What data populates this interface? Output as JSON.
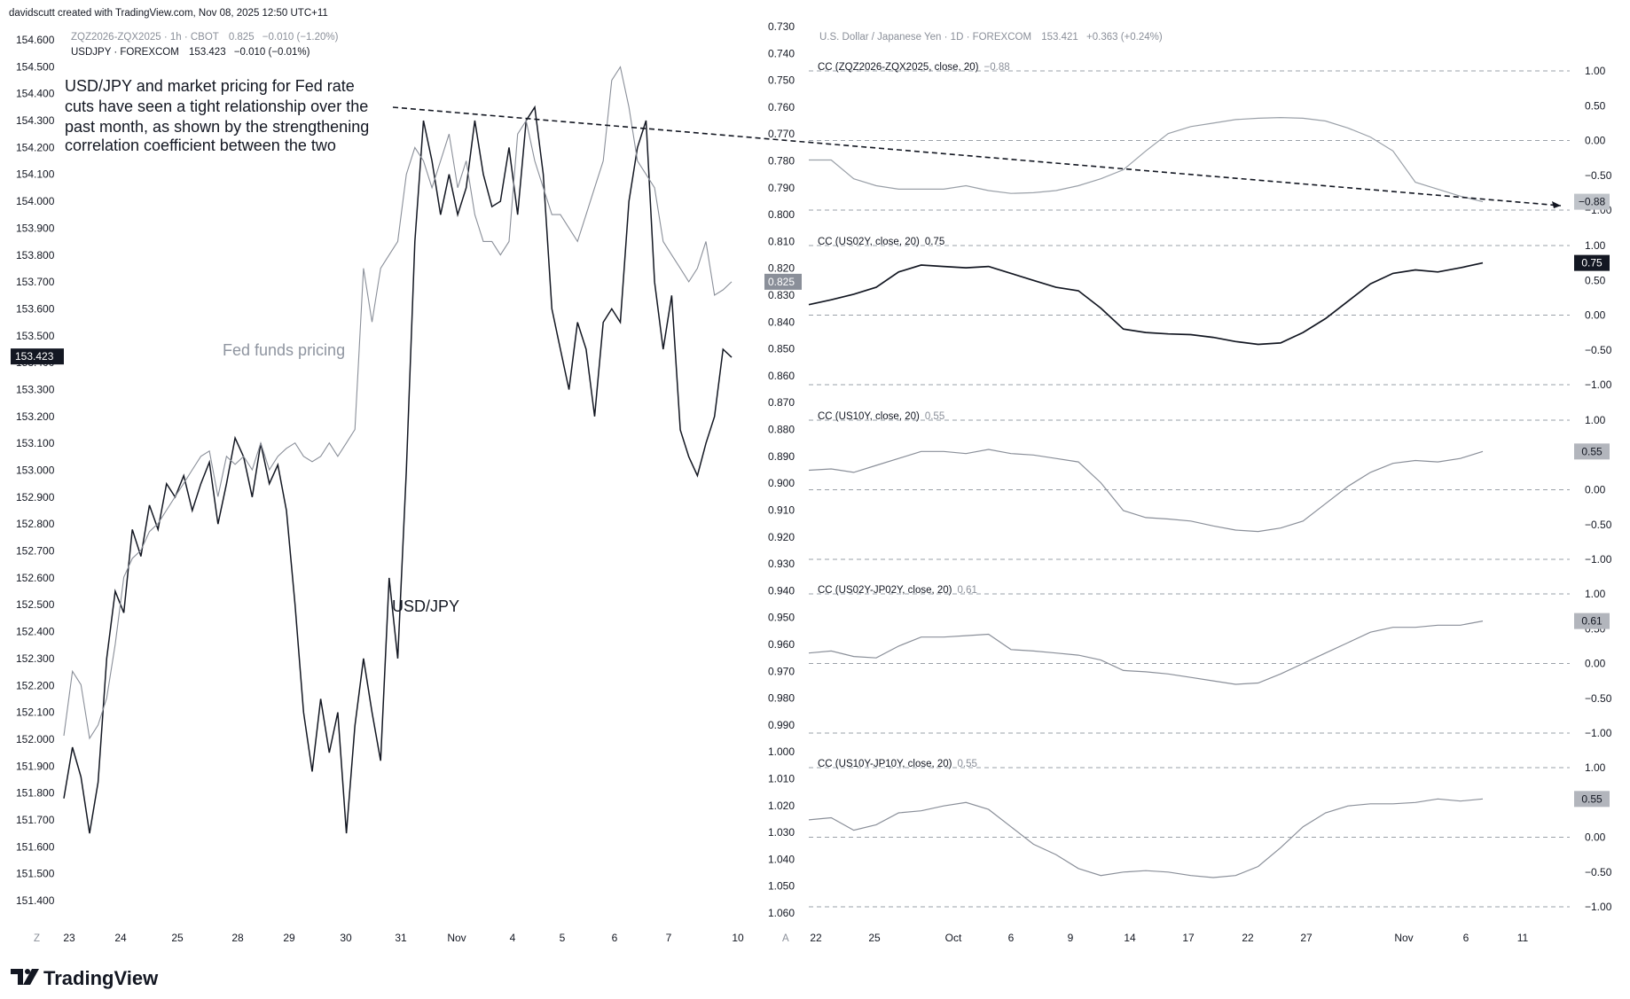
{
  "header": {
    "created_by": "davidscutt created with TradingView.com, Nov 08, 2025 12:50 UTC+11"
  },
  "branding": {
    "logo_text": "TradingView",
    "logo_icon": "tradingview-logo-icon"
  },
  "chart_data": [
    {
      "type": "line",
      "legend_entries": [
        {
          "symbol": "ZQZ2026-ZQX2025 · 1h · CBOT",
          "value": "0.825",
          "change": "−0.010 (−1.20%)",
          "color": "#8a8f99"
        },
        {
          "symbol": "USDJPY · FOREXCOM",
          "value": "153.423",
          "change": "−0.010 (−0.01%)",
          "color": "#131722"
        }
      ],
      "annotation": {
        "lines": [
          "USD/JPY and market pricing for Fed rate",
          "cuts have seen a tight relationship over the",
          "past month, as shown by the strengthening",
          "correlation coefficient between the two"
        ],
        "fed_label": "Fed funds pricing",
        "usdjpy_label": "USD/JPY"
      },
      "x_ticks": [
        "23",
        "24",
        "25",
        "28",
        "29",
        "30",
        "31",
        "Nov",
        "4",
        "5",
        "6",
        "7",
        "10"
      ],
      "left_axis": {
        "ticks": [
          "154.600",
          "154.500",
          "154.400",
          "154.300",
          "154.200",
          "154.100",
          "154.000",
          "153.900",
          "153.800",
          "153.700",
          "153.600",
          "153.500",
          "153.400",
          "153.300",
          "153.200",
          "153.100",
          "153.000",
          "152.900",
          "152.800",
          "152.700",
          "152.600",
          "152.500",
          "152.400",
          "152.300",
          "152.200",
          "152.100",
          "152.000",
          "151.900",
          "151.800",
          "151.700",
          "151.600",
          "151.500",
          "151.400"
        ],
        "range": [
          151.4,
          154.6
        ],
        "last_value_label": "153.423",
        "corner_label": "Z"
      },
      "right_axis": {
        "inverted": true,
        "ticks": [
          "0.730",
          "0.740",
          "0.750",
          "0.760",
          "0.770",
          "0.780",
          "0.790",
          "0.800",
          "0.810",
          "0.820",
          "0.830",
          "0.840",
          "0.850",
          "0.860",
          "0.870",
          "0.880",
          "0.890",
          "0.900",
          "0.910",
          "0.920",
          "0.930",
          "0.940",
          "0.950",
          "0.960",
          "0.970",
          "0.980",
          "0.990",
          "1.000",
          "1.010",
          "1.020",
          "1.030",
          "1.040",
          "1.050",
          "1.060"
        ],
        "range": [
          0.73,
          1.06
        ],
        "last_value_label": "0.825",
        "corner_label": "A"
      },
      "series": [
        {
          "name": "USDJPY · FOREXCOM",
          "axis": "left",
          "color": "#131722",
          "values": [
            151.78,
            151.97,
            151.86,
            151.65,
            151.84,
            152.3,
            152.55,
            152.47,
            152.78,
            152.68,
            152.87,
            152.78,
            152.95,
            152.9,
            152.98,
            152.85,
            152.95,
            153.03,
            152.8,
            152.95,
            153.12,
            153.05,
            152.9,
            153.1,
            152.95,
            153.02,
            152.85,
            152.5,
            152.1,
            151.88,
            152.15,
            151.95,
            152.1,
            151.65,
            152.05,
            152.3,
            152.1,
            151.92,
            152.6,
            152.3,
            153.0,
            153.85,
            154.3,
            154.15,
            153.95,
            154.1,
            153.95,
            154.05,
            154.3,
            154.1,
            153.98,
            154.0,
            154.2,
            153.95,
            154.3,
            154.35,
            154.1,
            153.6,
            153.45,
            153.3,
            153.55,
            153.45,
            153.2,
            153.55,
            153.6,
            153.55,
            154.0,
            154.2,
            154.3,
            153.7,
            153.45,
            153.65,
            153.15,
            153.05,
            152.98,
            153.1,
            153.2,
            153.45,
            153.42
          ]
        },
        {
          "name": "ZQZ2026-ZQX2025 · 1h · CBOT",
          "axis": "right",
          "color": "#8a8f99",
          "values": [
            0.994,
            0.97,
            0.975,
            0.995,
            0.99,
            0.98,
            0.96,
            0.935,
            0.928,
            0.925,
            0.918,
            0.915,
            0.91,
            0.905,
            0.9,
            0.895,
            0.89,
            0.888,
            0.905,
            0.89,
            0.893,
            0.89,
            0.895,
            0.885,
            0.895,
            0.89,
            0.887,
            0.885,
            0.89,
            0.892,
            0.89,
            0.885,
            0.89,
            0.885,
            0.88,
            0.82,
            0.84,
            0.82,
            0.815,
            0.81,
            0.785,
            0.775,
            0.78,
            0.79,
            0.78,
            0.77,
            0.79,
            0.78,
            0.8,
            0.81,
            0.81,
            0.815,
            0.81,
            0.77,
            0.765,
            0.78,
            0.79,
            0.8,
            0.8,
            0.805,
            0.81,
            0.8,
            0.79,
            0.78,
            0.75,
            0.745,
            0.76,
            0.78,
            0.785,
            0.79,
            0.81,
            0.815,
            0.82,
            0.825,
            0.82,
            0.81,
            0.83,
            0.828,
            0.825
          ]
        }
      ]
    },
    {
      "type": "line",
      "title": "U.S. Dollar / Japanese Yen · 1D · FOREXCOM",
      "title_value": "153.421",
      "title_change": "+0.363 (+0.24%)",
      "x_ticks": [
        "22",
        "25",
        "Oct",
        "6",
        "9",
        "14",
        "17",
        "22",
        "27",
        "Nov",
        "6",
        "11"
      ],
      "panels": [
        {
          "label": "CC (ZQZ2026-ZQX2025, close, 20)",
          "value": "−0.88",
          "ticks": [
            "1.00",
            "0.50",
            "0.00",
            "−0.50",
            "−1.00"
          ],
          "ylim": [
            -1,
            1
          ],
          "color": "#9aa0a8",
          "badge_bg": "#bfc3c9",
          "badge_text": "−0.88",
          "values": [
            -0.28,
            -0.28,
            -0.55,
            -0.65,
            -0.7,
            -0.7,
            -0.7,
            -0.65,
            -0.72,
            -0.76,
            -0.75,
            -0.72,
            -0.65,
            -0.55,
            -0.42,
            -0.15,
            0.1,
            0.2,
            0.25,
            0.3,
            0.32,
            0.33,
            0.32,
            0.28,
            0.18,
            0.05,
            -0.15,
            -0.6,
            -0.7,
            -0.8,
            -0.88
          ]
        },
        {
          "label": "CC (US02Y, close, 20)",
          "value": "0.75",
          "ticks": [
            "1.00",
            "0.50",
            "0.00",
            "−0.50",
            "−1.00"
          ],
          "ylim": [
            -1,
            1
          ],
          "color": "#131722",
          "badge_bg": "#131722",
          "badge_text": "0.75",
          "values": [
            0.15,
            0.22,
            0.3,
            0.4,
            0.62,
            0.72,
            0.7,
            0.68,
            0.7,
            0.6,
            0.5,
            0.4,
            0.35,
            0.1,
            -0.2,
            -0.25,
            -0.27,
            -0.28,
            -0.32,
            -0.38,
            -0.42,
            -0.4,
            -0.25,
            -0.05,
            0.2,
            0.45,
            0.6,
            0.65,
            0.62,
            0.68,
            0.75
          ]
        },
        {
          "label": "CC (US10Y, close, 20)",
          "value": "0.55",
          "ticks": [
            "1.00",
            "0.50",
            "0.00",
            "−0.50",
            "−1.00"
          ],
          "ylim": [
            -1,
            1
          ],
          "color": "#8a8f99",
          "badge_bg": "#b2b5bc",
          "badge_text": "0.55",
          "values": [
            0.28,
            0.3,
            0.25,
            0.35,
            0.45,
            0.55,
            0.55,
            0.52,
            0.58,
            0.52,
            0.5,
            0.45,
            0.4,
            0.1,
            -0.3,
            -0.4,
            -0.42,
            -0.45,
            -0.52,
            -0.58,
            -0.6,
            -0.55,
            -0.45,
            -0.2,
            0.05,
            0.25,
            0.38,
            0.42,
            0.4,
            0.45,
            0.55
          ]
        },
        {
          "label": "CC (US02Y-JP02Y, close, 20)",
          "value": "0.61",
          "ticks": [
            "1.00",
            "0.50",
            "0.00",
            "−0.50",
            "−1.00"
          ],
          "ylim": [
            -1,
            1
          ],
          "color": "#8a8f99",
          "badge_bg": "#b2b5bc",
          "badge_text": "0.61",
          "values": [
            0.15,
            0.18,
            0.1,
            0.08,
            0.25,
            0.38,
            0.38,
            0.4,
            0.42,
            0.2,
            0.18,
            0.15,
            0.12,
            0.05,
            -0.1,
            -0.12,
            -0.15,
            -0.2,
            -0.25,
            -0.3,
            -0.28,
            -0.15,
            0.0,
            0.15,
            0.3,
            0.45,
            0.52,
            0.52,
            0.55,
            0.55,
            0.61
          ]
        },
        {
          "label": "CC (US10Y-JP10Y, close, 20)",
          "value": "0.55",
          "ticks": [
            "1.00",
            "0.50",
            "0.00",
            "−0.50",
            "−1.00"
          ],
          "ylim": [
            -1,
            1
          ],
          "color": "#8a8f99",
          "badge_bg": "#b2b5bc",
          "badge_text": "0.55",
          "values": [
            0.25,
            0.28,
            0.1,
            0.18,
            0.35,
            0.38,
            0.45,
            0.5,
            0.4,
            0.15,
            -0.1,
            -0.25,
            -0.45,
            -0.55,
            -0.5,
            -0.48,
            -0.5,
            -0.55,
            -0.58,
            -0.55,
            -0.42,
            -0.15,
            0.15,
            0.35,
            0.45,
            0.48,
            0.48,
            0.5,
            0.55,
            0.52,
            0.55
          ]
        }
      ],
      "trendline": {
        "style": "dashed",
        "color": "#131722"
      }
    }
  ]
}
